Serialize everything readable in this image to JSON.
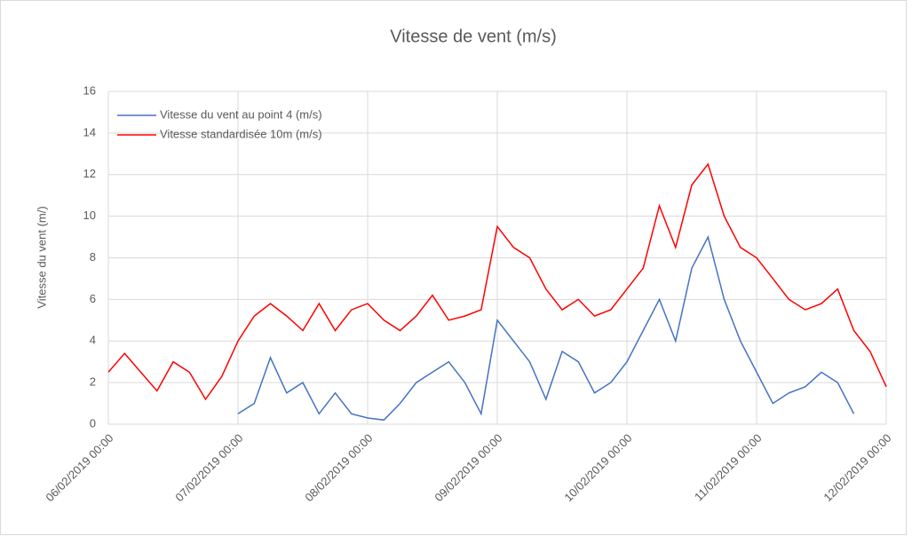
{
  "chart_data": {
    "type": "line",
    "title": "Vitesse de vent (m/s)",
    "y_label": "Vitesse du vent (m/)",
    "x": [
      "06/02/2019 00:00",
      "06/02/2019 03:00",
      "06/02/2019 06:00",
      "06/02/2019 09:00",
      "06/02/2019 12:00",
      "06/02/2019 15:00",
      "06/02/2019 18:00",
      "06/02/2019 21:00",
      "07/02/2019 00:00",
      "07/02/2019 03:00",
      "07/02/2019 06:00",
      "07/02/2019 09:00",
      "07/02/2019 12:00",
      "07/02/2019 15:00",
      "07/02/2019 18:00",
      "07/02/2019 21:00",
      "08/02/2019 00:00",
      "08/02/2019 03:00",
      "08/02/2019 06:00",
      "08/02/2019 09:00",
      "08/02/2019 12:00",
      "08/02/2019 15:00",
      "08/02/2019 18:00",
      "08/02/2019 21:00",
      "09/02/2019 00:00",
      "09/02/2019 03:00",
      "09/02/2019 06:00",
      "09/02/2019 09:00",
      "09/02/2019 12:00",
      "09/02/2019 15:00",
      "09/02/2019 18:00",
      "09/02/2019 21:00",
      "10/02/2019 00:00",
      "10/02/2019 03:00",
      "10/02/2019 06:00",
      "10/02/2019 09:00",
      "10/02/2019 12:00",
      "10/02/2019 15:00",
      "10/02/2019 18:00",
      "10/02/2019 21:00",
      "11/02/2019 00:00",
      "11/02/2019 03:00",
      "11/02/2019 06:00",
      "11/02/2019 09:00",
      "11/02/2019 12:00",
      "11/02/2019 15:00",
      "11/02/2019 18:00",
      "11/02/2019 21:00",
      "12/02/2019 00:00"
    ],
    "series": [
      {
        "name": "Vitesse du vent au point 4 (m/s)",
        "color": "#4472c4",
        "values": [
          null,
          null,
          null,
          null,
          null,
          null,
          null,
          null,
          0.5,
          1.0,
          3.2,
          1.5,
          2.0,
          0.5,
          1.5,
          0.5,
          0.3,
          0.2,
          1.0,
          2.0,
          2.5,
          3.0,
          2.0,
          0.5,
          5.0,
          4.0,
          3.0,
          1.2,
          3.5,
          3.0,
          1.5,
          2.0,
          3.0,
          4.5,
          6.0,
          4.0,
          7.5,
          9.0,
          6.0,
          4.0,
          2.5,
          1.0,
          1.5,
          1.8,
          2.5,
          2.0,
          0.5,
          null,
          null
        ]
      },
      {
        "name": "Vitesse standardisée 10m (m/s)",
        "color": "#ff0000",
        "values": [
          2.5,
          3.4,
          2.5,
          1.6,
          3.0,
          2.5,
          1.2,
          2.3,
          4.0,
          5.2,
          5.8,
          5.2,
          4.5,
          5.8,
          4.5,
          5.5,
          5.8,
          5.0,
          4.5,
          5.2,
          6.2,
          5.0,
          5.2,
          5.5,
          9.5,
          8.5,
          8.0,
          6.5,
          5.5,
          6.0,
          5.2,
          5.5,
          6.5,
          7.5,
          10.5,
          8.5,
          11.5,
          12.5,
          10.0,
          8.5,
          8.0,
          7.0,
          6.0,
          5.5,
          5.8,
          6.5,
          4.5,
          3.5,
          1.8
        ]
      }
    ],
    "xlim": [
      "06/02/2019 00:00",
      "12/02/2019 00:00"
    ],
    "xticks": [
      "06/02/2019 00:00",
      "07/02/2019 00:00",
      "08/02/2019 00:00",
      "09/02/2019 00:00",
      "10/02/2019 00:00",
      "11/02/2019 00:00",
      "12/02/2019 00:00"
    ],
    "ylim": [
      0,
      16
    ],
    "yticks": [
      0,
      2,
      4,
      6,
      8,
      10,
      12,
      14,
      16
    ],
    "grid": true,
    "legend": "upper left"
  }
}
